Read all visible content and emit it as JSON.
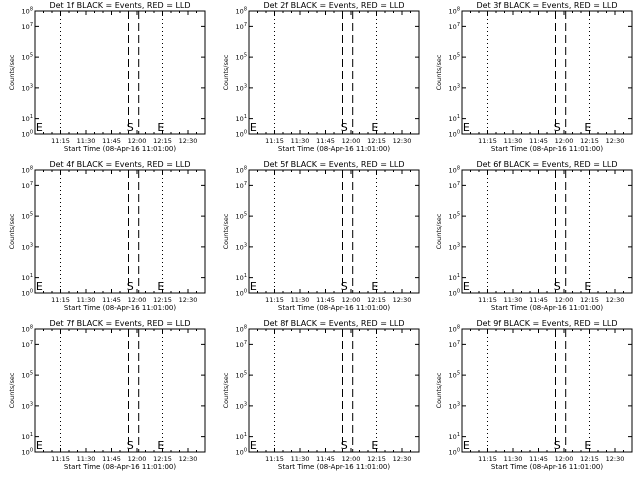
{
  "window": {
    "background": "#ffffff",
    "foreground": "#000000"
  },
  "panel_titles": [
    "Det 1f BLACK = Events, RED = LLD",
    "Det 2f BLACK = Events, RED = LLD",
    "Det 3f BLACK = Events, RED = LLD",
    "Det 4f BLACK = Events, RED = LLD",
    "Det 5f BLACK = Events, RED = LLD",
    "Det 6f BLACK = Events, RED = LLD",
    "Det 7f BLACK = Events, RED = LLD",
    "Det 8f BLACK = Events, RED = LLD",
    "Det 9f BLACK = Events, RED = LLD"
  ],
  "chart_data": {
    "type": "line",
    "layout": "3x3 grid",
    "xlabel": "Start Time (08-Apr-16 11:01:00)",
    "ylabel": "Counts/sec",
    "x_unit": "minutes after 11:00",
    "xlim": [
      0,
      100
    ],
    "x_ticks": [
      {
        "value": 15,
        "label": "11:15"
      },
      {
        "value": 30,
        "label": "11:30"
      },
      {
        "value": 45,
        "label": "11:45"
      },
      {
        "value": 60,
        "label": "12:00"
      },
      {
        "value": 75,
        "label": "12:15"
      },
      {
        "value": 90,
        "label": "12:30"
      }
    ],
    "y_scale": "log",
    "ylim": [
      1,
      100000000
    ],
    "y_ticks": [
      {
        "value": 1,
        "base": "10",
        "exp": "0"
      },
      {
        "value": 10,
        "base": "10",
        "exp": "1"
      },
      {
        "value": 1000,
        "base": "10",
        "exp": "3"
      },
      {
        "value": 100000,
        "base": "10",
        "exp": "5"
      },
      {
        "value": 10000000,
        "base": "10",
        "exp": "7"
      },
      {
        "value": 100000000,
        "base": "10",
        "exp": "8"
      }
    ],
    "dotted_lines_x": [
      15,
      75
    ],
    "dashed_lines_x": [
      55,
      61
    ],
    "markers": [
      {
        "label": "E",
        "x": 0.5,
        "y": 1.6
      },
      {
        "label": "S",
        "x": 54,
        "y": 1.6
      },
      {
        "label": "E",
        "x": 72,
        "y": 1.6
      }
    ],
    "series": []
  }
}
